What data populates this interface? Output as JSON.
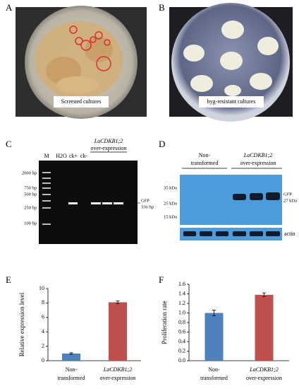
{
  "panels": {
    "A": {
      "label": "A",
      "caption": "Screened cultures"
    },
    "B": {
      "label": "B",
      "caption": "hyg-resistant cultures"
    },
    "C": {
      "label": "C",
      "lanes": [
        "M",
        "H2O",
        "ck+",
        "ck-"
      ],
      "group": [
        "LaCDKB1;2",
        "over-expression"
      ],
      "markers": [
        "2000 bp",
        "750 bp",
        "500 bp",
        "250 bp",
        "100 bp"
      ],
      "band": [
        "GFP",
        "336 bp"
      ]
    },
    "D": {
      "label": "D",
      "groups": [
        [
          "Non-",
          "transformed"
        ],
        [
          "LaCDKB1;2",
          "over-expression"
        ]
      ],
      "markers": [
        "35 kDa",
        "25 kDa",
        "15 kDa"
      ],
      "band": [
        "GFP",
        "27 kDa"
      ],
      "loading": "actin"
    },
    "E": {
      "label": "E"
    },
    "F": {
      "label": "F"
    }
  },
  "chart_data": [
    {
      "type": "bar",
      "ylabel": "Relative expression level",
      "categories": [
        [
          "Non-",
          "transformed"
        ],
        [
          "LaCDKB1;2",
          "over-expression"
        ]
      ],
      "values": [
        1.0,
        8.1
      ],
      "errors": [
        0.1,
        0.2
      ],
      "colors": [
        "#4f81bd",
        "#c0504d"
      ],
      "ylim": [
        0,
        10
      ],
      "yticks": [
        0,
        2,
        4,
        6,
        8,
        10
      ]
    },
    {
      "type": "bar",
      "ylabel": "Proliferation rate",
      "categories": [
        [
          "Non-",
          "transformed"
        ],
        [
          "LaCDKB1;2",
          "over-expression"
        ]
      ],
      "values": [
        1.0,
        1.38
      ],
      "errors": [
        0.06,
        0.04
      ],
      "colors": [
        "#4f81bd",
        "#c0504d"
      ],
      "ylim": [
        0,
        1.6
      ],
      "yticks": [
        {
          "value": 0,
          "label": "0.0"
        },
        {
          "value": 0.2,
          "label": "0.2"
        },
        {
          "value": 0.4,
          "label": "0.4"
        },
        {
          "value": 0.6,
          "label": "0.6"
        },
        {
          "value": 0.8,
          "label": "0.8"
        },
        {
          "value": 1,
          "label": "1.0"
        },
        {
          "value": 1.2,
          "label": "1.2"
        },
        {
          "value": 1.4,
          "label": "1.4"
        },
        {
          "value": 1.6,
          "label": "1.6"
        }
      ]
    }
  ]
}
